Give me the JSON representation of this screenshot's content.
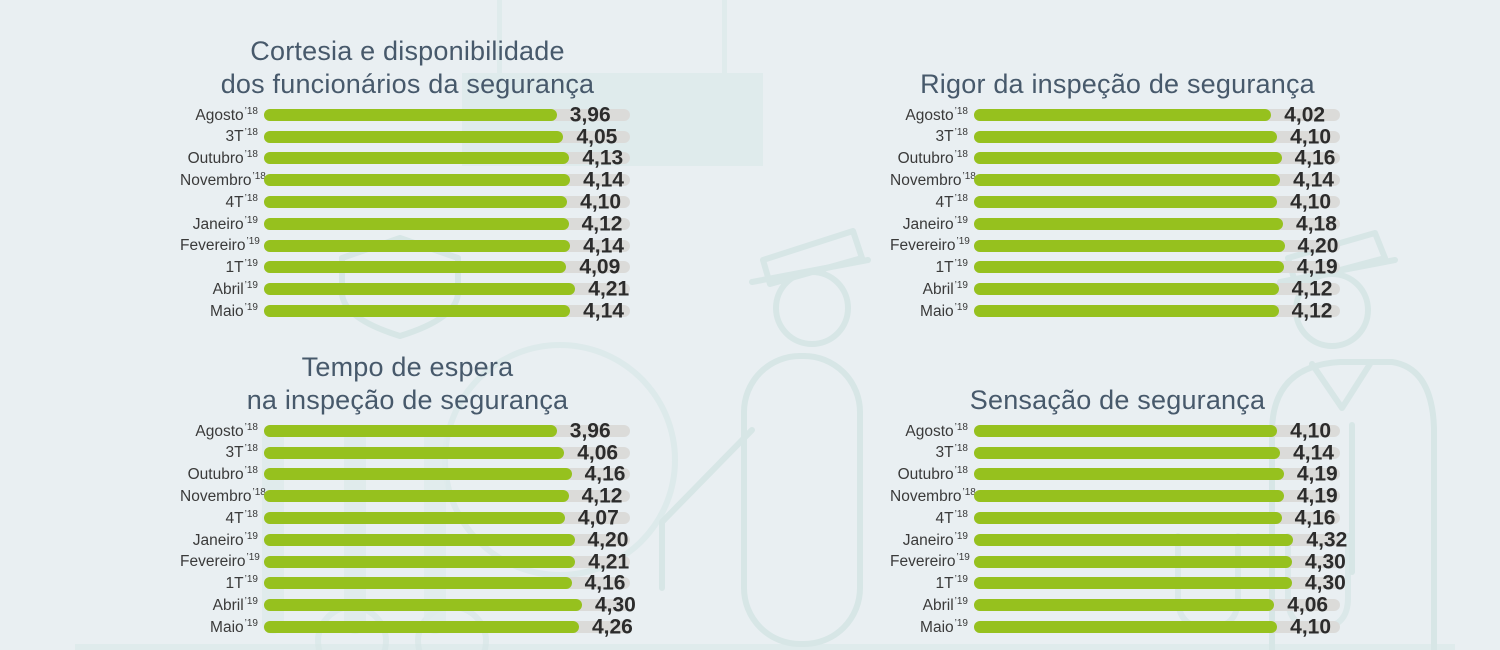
{
  "page": {
    "background_color": "#e9eff2",
    "language": "pt"
  },
  "colors": {
    "bar_green": "#96c11e",
    "track_gray": "#dbdbd9",
    "title_blue_gray": "#47596b",
    "value_text": "#2c2c2c",
    "label_text": "#3a3a3a",
    "watermark_fill": "#dfebec",
    "watermark_stroke": "#d7e6e6"
  },
  "categories": [
    {
      "text": "Agosto",
      "sup": "’18"
    },
    {
      "text": "3T",
      "sup": "’18"
    },
    {
      "text": "Outubro",
      "sup": "’18"
    },
    {
      "text": "Novembro",
      "sup": "’18"
    },
    {
      "text": "4T",
      "sup": "’18"
    },
    {
      "text": "Janeiro",
      "sup": "’19"
    },
    {
      "text": "Fevereiro",
      "sup": "’19"
    },
    {
      "text": "1T",
      "sup": "’19"
    },
    {
      "text": "Abril",
      "sup": "’19"
    },
    {
      "text": "Maio",
      "sup": "’19"
    }
  ],
  "chart_data": [
    {
      "type": "bar",
      "orientation": "horizontal",
      "title": "Cortesia e disponibilidade dos funcionários da segurança",
      "title_lines": [
        "Cortesia e disponibilidade",
        "dos funcionários da segurança"
      ],
      "categories": [
        "Agosto ’18",
        "3T ’18",
        "Outubro ’18",
        "Novembro ’18",
        "4T ’18",
        "Janeiro ’19",
        "Fevereiro ’19",
        "1T ’19",
        "Abril ’19",
        "Maio ’19"
      ],
      "values": [
        3.96,
        4.05,
        4.13,
        4.14,
        4.1,
        4.12,
        4.14,
        4.09,
        4.21,
        4.14
      ],
      "value_labels": [
        "3,96",
        "4,05",
        "4,13",
        "4,14",
        "4,10",
        "4,12",
        "4,14",
        "4,09",
        "4,21",
        "4,14"
      ],
      "xlim": [
        0,
        5
      ],
      "grid": false,
      "legend": false
    },
    {
      "type": "bar",
      "orientation": "horizontal",
      "title": "Rigor da inspeção de segurança",
      "title_lines": [
        "Rigor da inspeção de segurança"
      ],
      "categories": [
        "Agosto ’18",
        "3T ’18",
        "Outubro ’18",
        "Novembro ’18",
        "4T ’18",
        "Janeiro ’19",
        "Fevereiro ’19",
        "1T ’19",
        "Abril ’19",
        "Maio ’19"
      ],
      "values": [
        4.02,
        4.1,
        4.16,
        4.14,
        4.1,
        4.18,
        4.2,
        4.19,
        4.12,
        4.12
      ],
      "value_labels": [
        "4,02",
        "4,10",
        "4,16",
        "4,14",
        "4,10",
        "4,18",
        "4,20",
        "4,19",
        "4,12",
        "4,12"
      ],
      "xlim": [
        0,
        5
      ],
      "grid": false,
      "legend": false
    },
    {
      "type": "bar",
      "orientation": "horizontal",
      "title": "Tempo de espera na inspeção de segurança",
      "title_lines": [
        "Tempo de espera",
        "na inspeção de segurança"
      ],
      "categories": [
        "Agosto ’18",
        "3T ’18",
        "Outubro ’18",
        "Novembro ’18",
        "4T ’18",
        "Janeiro ’19",
        "Fevereiro ’19",
        "1T ’19",
        "Abril ’19",
        "Maio ’19"
      ],
      "values": [
        3.96,
        4.06,
        4.16,
        4.12,
        4.07,
        4.2,
        4.21,
        4.16,
        4.3,
        4.26
      ],
      "value_labels": [
        "3,96",
        "4,06",
        "4,16",
        "4,12",
        "4,07",
        "4,20",
        "4,21",
        "4,16",
        "4,30",
        "4,26"
      ],
      "xlim": [
        0,
        5
      ],
      "grid": false,
      "legend": false
    },
    {
      "type": "bar",
      "orientation": "horizontal",
      "title": "Sensação de segurança",
      "title_lines": [
        "Sensação de segurança"
      ],
      "categories": [
        "Agosto ’18",
        "3T ’18",
        "Outubro ’18",
        "Novembro ’18",
        "4T ’18",
        "Janeiro ’19",
        "Fevereiro ’19",
        "1T ’19",
        "Abril ’19",
        "Maio ’19"
      ],
      "values": [
        4.1,
        4.14,
        4.19,
        4.19,
        4.16,
        4.32,
        4.3,
        4.3,
        4.06,
        4.1
      ],
      "value_labels": [
        "4,10",
        "4,14",
        "4,19",
        "4,19",
        "4,16",
        "4,32",
        "4,30",
        "4,30",
        "4,06",
        "4,10"
      ],
      "xlim": [
        0,
        5
      ],
      "grid": false,
      "legend": false
    }
  ]
}
